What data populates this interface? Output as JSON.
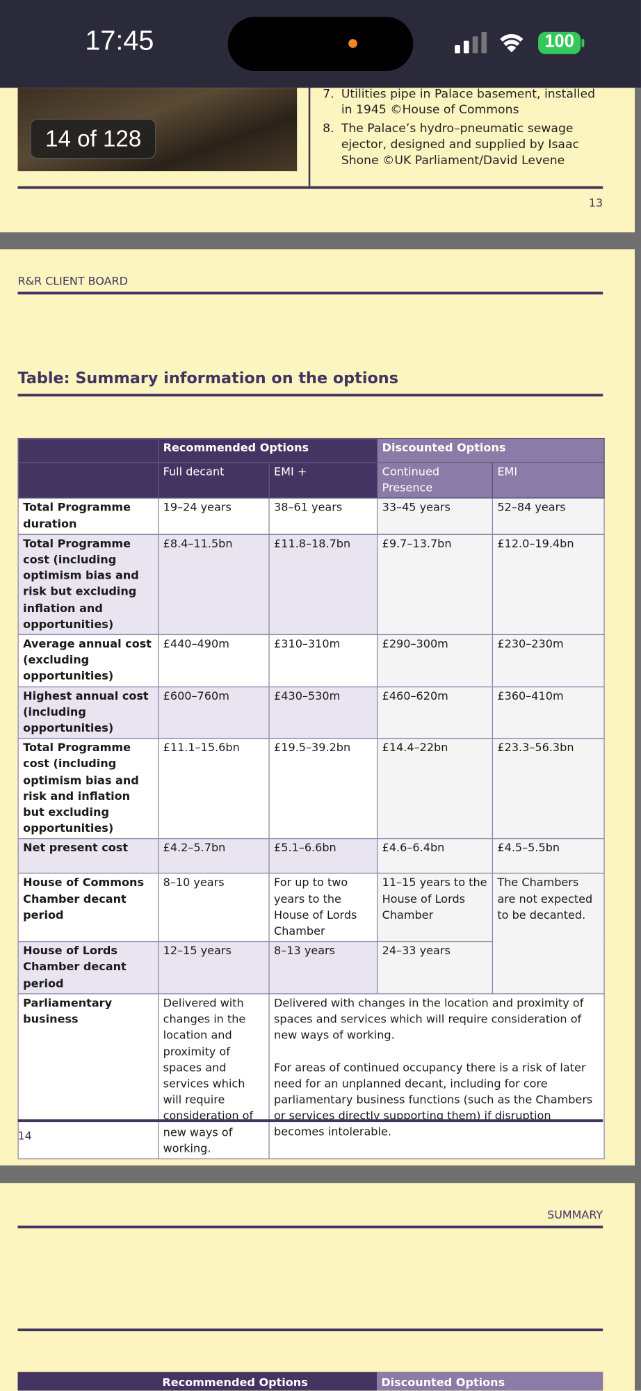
{
  "status_bar": {
    "time": "17:45",
    "battery": "100"
  },
  "viewer": {
    "page_counter": "14 of 128"
  },
  "previous_page": {
    "captions": [
      {
        "number": "7.",
        "text": "Utilities pipe in Palace basement, installed in 1945 ©House of Commons"
      },
      {
        "number": "8.",
        "text": "The Palace’s hydro–pneumatic sewage ejector, designed and supplied by Isaac Shone ©UK Parliament/David Levene"
      }
    ],
    "page_number": "13"
  },
  "page": {
    "running_header": "R&R CLIENT BOARD",
    "table_title": "Table: Summary information on the options",
    "page_number": "14"
  },
  "table": {
    "group_headers": [
      "Recommended Options",
      "Discounted Options"
    ],
    "columns": [
      "Full decant",
      "EMI +",
      "Continued Presence",
      "EMI"
    ],
    "rows": [
      {
        "label": "Total Programme duration",
        "cells": [
          "19–24 years",
          "38–61 years",
          "33–45 years",
          "52–84 years"
        ]
      },
      {
        "label": "Total Programme cost (including optimism bias and risk but excluding inflation and opportunities)",
        "cells": [
          "£8.4–11.5bn",
          "£11.8–18.7bn",
          "£9.7–13.7bn",
          "£12.0–19.4bn"
        ]
      },
      {
        "label": "Average annual cost (excluding opportunities)",
        "cells": [
          "£440–490m",
          "£310–310m",
          "£290–300m",
          "£230–230m"
        ]
      },
      {
        "label": "Highest annual cost (including opportunities)",
        "cells": [
          "£600–760m",
          "£430–530m",
          "£460–620m",
          "£360–410m"
        ]
      },
      {
        "label": "Total Programme cost (including optimism bias and risk and inflation but excluding opportunities)",
        "cells": [
          "£11.1–15.6bn",
          "£19.5–39.2bn",
          "£14.4–22bn",
          "£23.3–56.3bn"
        ]
      },
      {
        "label": "Net present cost",
        "cells": [
          "£4.2–5.7bn",
          "£5.1–6.6bn",
          "£4.6–6.4bn",
          "£4.5–5.5bn"
        ]
      },
      {
        "label": "House of Commons Chamber decant period",
        "cells": [
          "8–10 years",
          "For up to two years to the House of Lords Chamber",
          "11–15 years to the House of Lords Chamber",
          "The Chambers are not expected to be decanted."
        ]
      },
      {
        "label": "House of Lords Chamber decant period",
        "cells": [
          "12–15 years",
          "8–13 years",
          "24–33 years"
        ]
      },
      {
        "label": "Parliamentary business",
        "cells": [
          "Delivered with changes in the location and proximity of spaces and services which will require consideration of new ways of working.",
          "Delivered with changes in the location and proximity of spaces and services which will require consideration of new ways of working.",
          "For areas of continued occupancy there is a risk of later need for an unplanned decant, including for core parliamentary business functions (such as the Chambers or services directly supporting them) if disruption becomes intolerable."
        ]
      }
    ]
  },
  "next_page": {
    "running_header": "SUMMARY",
    "group_headers": [
      "Recommended Options",
      "Discounted Options"
    ]
  }
}
